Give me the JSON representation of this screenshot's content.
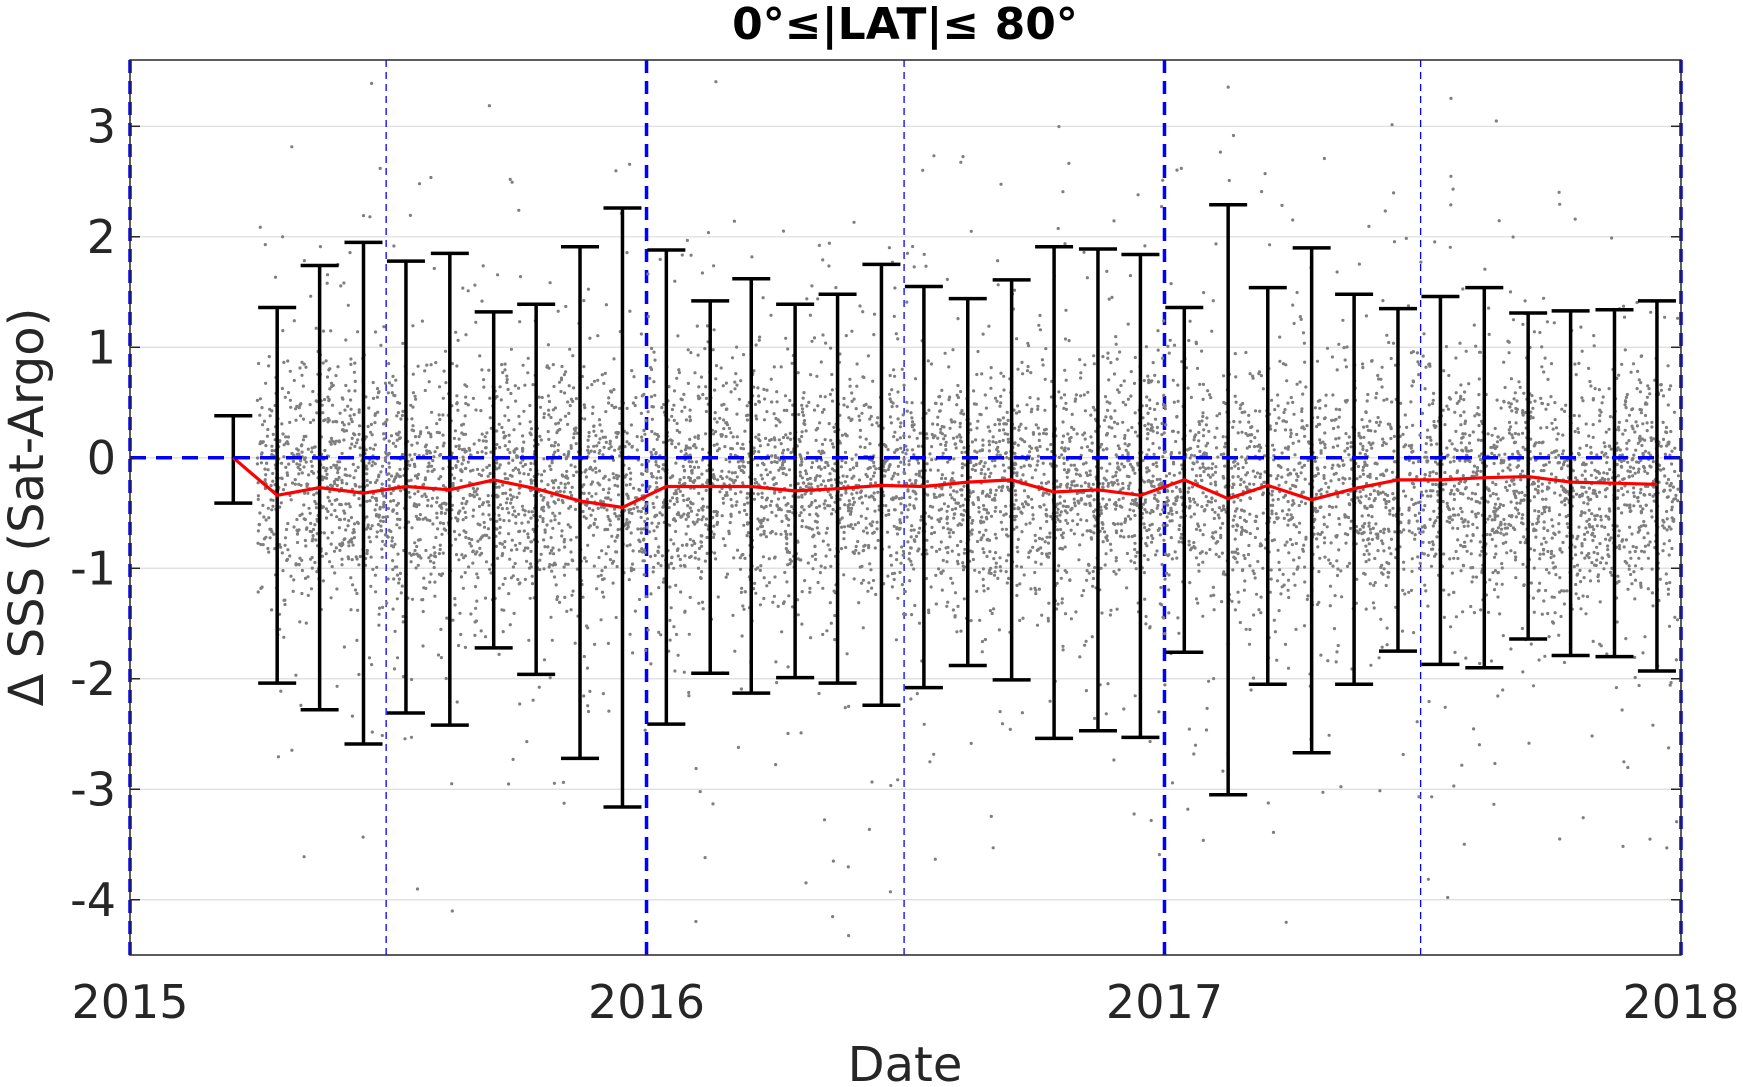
{
  "chart_data": {
    "type": "scatter",
    "title": "0°≤|LAT|≤ 80°",
    "xlabel": "Date",
    "ylabel": "Δ SSS (Sat-Argo)",
    "xlim": [
      "2015-01-01",
      "2018-01-01"
    ],
    "ylim": [
      -4.5,
      3.6
    ],
    "x_ticks": [
      "2015",
      "2016",
      "2017",
      "2018"
    ],
    "y_ticks": [
      3,
      2,
      1,
      0,
      -1,
      -2,
      -3,
      -4
    ],
    "grid": true,
    "colors": {
      "points": "#7f7f7f",
      "mean_line": "#ff0000",
      "error_bars": "#000000",
      "reference_lines": "#0000ff"
    },
    "reference_lines": {
      "horizontal_zero": 0,
      "year_boundaries": [
        "2015-01-01",
        "2016-01-01",
        "2017-01-01",
        "2018-01-01"
      ],
      "mid_year": [
        "2015-07-01",
        "2016-07-01",
        "2017-07-01"
      ]
    },
    "scatter_note": "dense cloud of individual satellite-minus-Argo differences, concentrated between about -1 and 1",
    "series": [
      {
        "type": "errorbar_line",
        "points": [
          {
            "date": "2015-03-15",
            "mean": 0.0,
            "lower": -0.41,
            "upper": 0.38
          },
          {
            "date": "2015-04-15",
            "mean": -0.34,
            "lower": -2.04,
            "upper": 1.36
          },
          {
            "date": "2015-05-15",
            "mean": -0.27,
            "lower": -2.28,
            "upper": 1.74
          },
          {
            "date": "2015-06-15",
            "mean": -0.32,
            "lower": -2.59,
            "upper": 1.95
          },
          {
            "date": "2015-07-15",
            "mean": -0.26,
            "lower": -2.31,
            "upper": 1.78
          },
          {
            "date": "2015-08-15",
            "mean": -0.29,
            "lower": -2.42,
            "upper": 1.85
          },
          {
            "date": "2015-09-15",
            "mean": -0.2,
            "lower": -1.72,
            "upper": 1.32
          },
          {
            "date": "2015-10-15",
            "mean": -0.28,
            "lower": -1.96,
            "upper": 1.39
          },
          {
            "date": "2015-11-15",
            "mean": -0.39,
            "lower": -2.72,
            "upper": 1.91
          },
          {
            "date": "2015-12-15",
            "mean": -0.45,
            "lower": -3.16,
            "upper": 2.26
          },
          {
            "date": "2016-01-15",
            "mean": -0.26,
            "lower": -2.41,
            "upper": 1.88
          },
          {
            "date": "2016-02-15",
            "mean": -0.26,
            "lower": -1.95,
            "upper": 1.42
          },
          {
            "date": "2016-03-15",
            "mean": -0.26,
            "lower": -2.13,
            "upper": 1.62
          },
          {
            "date": "2016-04-15",
            "mean": -0.3,
            "lower": -1.99,
            "upper": 1.39
          },
          {
            "date": "2016-05-15",
            "mean": -0.28,
            "lower": -2.04,
            "upper": 1.48
          },
          {
            "date": "2016-06-15",
            "mean": -0.25,
            "lower": -2.24,
            "upper": 1.75
          },
          {
            "date": "2016-07-15",
            "mean": -0.26,
            "lower": -2.08,
            "upper": 1.55
          },
          {
            "date": "2016-08-15",
            "mean": -0.22,
            "lower": -1.88,
            "upper": 1.44
          },
          {
            "date": "2016-09-15",
            "mean": -0.2,
            "lower": -2.01,
            "upper": 1.61
          },
          {
            "date": "2016-10-15",
            "mean": -0.31,
            "lower": -2.54,
            "upper": 1.91
          },
          {
            "date": "2016-11-15",
            "mean": -0.29,
            "lower": -2.47,
            "upper": 1.89
          },
          {
            "date": "2016-12-15",
            "mean": -0.34,
            "lower": -2.53,
            "upper": 1.84
          },
          {
            "date": "2017-01-15",
            "mean": -0.2,
            "lower": -1.76,
            "upper": 1.36
          },
          {
            "date": "2017-02-15",
            "mean": -0.37,
            "lower": -3.05,
            "upper": 2.29
          },
          {
            "date": "2017-03-15",
            "mean": -0.25,
            "lower": -2.05,
            "upper": 1.54
          },
          {
            "date": "2017-04-15",
            "mean": -0.38,
            "lower": -2.67,
            "upper": 1.9
          },
          {
            "date": "2017-05-15",
            "mean": -0.28,
            "lower": -2.05,
            "upper": 1.48
          },
          {
            "date": "2017-06-15",
            "mean": -0.2,
            "lower": -1.75,
            "upper": 1.35
          },
          {
            "date": "2017-07-15",
            "mean": -0.2,
            "lower": -1.87,
            "upper": 1.46
          },
          {
            "date": "2017-08-15",
            "mean": -0.18,
            "lower": -1.9,
            "upper": 1.54
          },
          {
            "date": "2017-09-15",
            "mean": -0.17,
            "lower": -1.64,
            "upper": 1.31
          },
          {
            "date": "2017-10-15",
            "mean": -0.22,
            "lower": -1.79,
            "upper": 1.33
          },
          {
            "date": "2017-11-15",
            "mean": -0.23,
            "lower": -1.8,
            "upper": 1.34
          },
          {
            "date": "2017-12-15",
            "mean": -0.24,
            "lower": -1.93,
            "upper": 1.42
          }
        ]
      }
    ]
  }
}
